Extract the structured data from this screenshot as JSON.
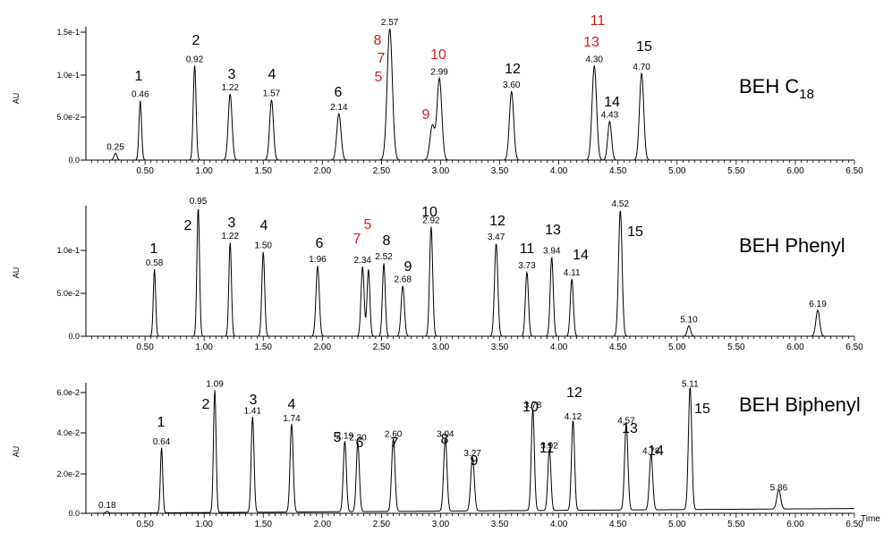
{
  "chart_data": [
    {
      "type": "line",
      "title": "BEH C18",
      "title_main": "BEH C",
      "title_sub": "18",
      "ylabel": "AU",
      "xlim": [
        0.0,
        6.5
      ],
      "ylim": [
        0.0,
        0.155
      ],
      "y_ticks": [
        {
          "value": 0.0,
          "label": "0.0"
        },
        {
          "value": 0.05,
          "label": "5.0e-2"
        },
        {
          "value": 0.1,
          "label": "1.0e-1"
        },
        {
          "value": 0.15,
          "label": "1.5e-1"
        }
      ],
      "x_ticks": [
        "0.50",
        "1.00",
        "1.50",
        "2.00",
        "2.50",
        "3.00",
        "3.50",
        "4.00",
        "4.50",
        "5.00",
        "5.50",
        "6.00",
        "6.50"
      ],
      "peaks": [
        {
          "rt": 0.25,
          "height": 0.008,
          "width": 0.012,
          "rt_label": "0.25",
          "number": ""
        },
        {
          "rt": 0.46,
          "height": 0.069,
          "width": 0.011,
          "rt_label": "0.46",
          "number": "1"
        },
        {
          "rt": 0.92,
          "height": 0.11,
          "width": 0.012,
          "rt_label": "0.92",
          "number": "2"
        },
        {
          "rt": 1.22,
          "height": 0.077,
          "width": 0.016,
          "rt_label": "1.22",
          "number": "3"
        },
        {
          "rt": 1.57,
          "height": 0.07,
          "width": 0.016,
          "rt_label": "1.57",
          "number": "4"
        },
        {
          "rt": 2.14,
          "height": 0.054,
          "width": 0.018,
          "rt_label": "2.14",
          "number": "6"
        },
        {
          "rt": 2.57,
          "height": 0.153,
          "width": 0.022,
          "rt_label": "2.57",
          "number": ""
        },
        {
          "rt": 2.93,
          "height": 0.04,
          "width": 0.02,
          "rt_label": "",
          "number": ""
        },
        {
          "rt": 2.99,
          "height": 0.095,
          "width": 0.02,
          "rt_label": "2.99",
          "number": ""
        },
        {
          "rt": 3.6,
          "height": 0.08,
          "width": 0.018,
          "rt_label": "3.60",
          "number": "12"
        },
        {
          "rt": 4.3,
          "height": 0.11,
          "width": 0.019,
          "rt_label": "4.30",
          "number": ""
        },
        {
          "rt": 4.43,
          "height": 0.045,
          "width": 0.016,
          "rt_label": "4.43",
          "number": "14"
        },
        {
          "rt": 4.7,
          "height": 0.101,
          "width": 0.018,
          "rt_label": "4.70",
          "number": "15"
        }
      ],
      "red_labels": [
        "8",
        "7",
        "5",
        "10",
        "9",
        "11",
        "13"
      ]
    },
    {
      "type": "line",
      "title": "BEH Phenyl",
      "ylabel": "AU",
      "xlim": [
        0.0,
        6.5
      ],
      "ylim": [
        0.0,
        0.15
      ],
      "y_ticks": [
        {
          "value": 0.0,
          "label": "0.0"
        },
        {
          "value": 0.05,
          "label": "5.0e-2"
        },
        {
          "value": 0.1,
          "label": "1.0e-1"
        }
      ],
      "x_ticks": [
        "0.50",
        "1.00",
        "1.50",
        "2.00",
        "2.50",
        "3.00",
        "3.50",
        "4.00",
        "4.50",
        "5.00",
        "5.50",
        "6.00",
        "6.50"
      ],
      "peaks": [
        {
          "rt": 0.58,
          "height": 0.077,
          "width": 0.01,
          "rt_label": "0.58",
          "number": "1"
        },
        {
          "rt": 0.95,
          "height": 0.148,
          "width": 0.011,
          "rt_label": "0.95",
          "number": "2"
        },
        {
          "rt": 1.22,
          "height": 0.108,
          "width": 0.011,
          "rt_label": "1.22",
          "number": "3"
        },
        {
          "rt": 1.5,
          "height": 0.097,
          "width": 0.012,
          "rt_label": "1.50",
          "number": "4"
        },
        {
          "rt": 1.96,
          "height": 0.081,
          "width": 0.014,
          "rt_label": "1.96",
          "number": "6"
        },
        {
          "rt": 2.34,
          "height": 0.08,
          "width": 0.013,
          "rt_label": "2.34",
          "number": ""
        },
        {
          "rt": 2.39,
          "height": 0.077,
          "width": 0.012,
          "rt_label": "",
          "number": ""
        },
        {
          "rt": 2.52,
          "height": 0.084,
          "width": 0.012,
          "rt_label": "2.52",
          "number": "8"
        },
        {
          "rt": 2.68,
          "height": 0.058,
          "width": 0.014,
          "rt_label": "2.68",
          "number": "9"
        },
        {
          "rt": 2.92,
          "height": 0.126,
          "width": 0.013,
          "rt_label": "2.92",
          "number": "10"
        },
        {
          "rt": 3.47,
          "height": 0.107,
          "width": 0.014,
          "rt_label": "3.47",
          "number": "12"
        },
        {
          "rt": 3.73,
          "height": 0.074,
          "width": 0.013,
          "rt_label": "3.73",
          "number": "11"
        },
        {
          "rt": 3.94,
          "height": 0.091,
          "width": 0.013,
          "rt_label": "3.94",
          "number": "13"
        },
        {
          "rt": 4.11,
          "height": 0.066,
          "width": 0.013,
          "rt_label": "4.11",
          "number": "14"
        },
        {
          "rt": 4.52,
          "height": 0.145,
          "width": 0.015,
          "rt_label": "4.52",
          "number": "15"
        },
        {
          "rt": 5.1,
          "height": 0.012,
          "width": 0.014,
          "rt_label": "5.10",
          "number": ""
        },
        {
          "rt": 6.19,
          "height": 0.03,
          "width": 0.016,
          "rt_label": "6.19",
          "number": ""
        }
      ],
      "red_labels": [
        "7",
        "5"
      ]
    },
    {
      "type": "line",
      "title": "BEH Biphenyl",
      "ylabel": "AU",
      "xaxis_label": "Time",
      "xlim": [
        0.0,
        6.5
      ],
      "ylim": [
        0.0,
        0.068
      ],
      "y_ticks": [
        {
          "value": 0.0,
          "label": "0.0"
        },
        {
          "value": 0.02,
          "label": "2.0e-2"
        },
        {
          "value": 0.04,
          "label": "4.0e-2"
        },
        {
          "value": 0.06,
          "label": "6.0e-2"
        }
      ],
      "x_ticks": [
        "0.50",
        "1.00",
        "1.50",
        "2.00",
        "2.50",
        "3.00",
        "3.50",
        "4.00",
        "4.50",
        "5.00",
        "5.50",
        "6.00",
        "6.50"
      ],
      "peaks": [
        {
          "rt": 0.18,
          "height": 0.001,
          "width": 0.012,
          "rt_label": "0.18",
          "number": ""
        },
        {
          "rt": 0.64,
          "height": 0.034,
          "width": 0.01,
          "rt_label": "0.64",
          "number": "1"
        },
        {
          "rt": 1.09,
          "height": 0.064,
          "width": 0.011,
          "rt_label": "1.09",
          "number": "2"
        },
        {
          "rt": 1.41,
          "height": 0.05,
          "width": 0.012,
          "rt_label": "1.41",
          "number": "3"
        },
        {
          "rt": 1.74,
          "height": 0.046,
          "width": 0.013,
          "rt_label": "1.74",
          "number": "4"
        },
        {
          "rt": 2.19,
          "height": 0.037,
          "width": 0.013,
          "rt_label": "2.19",
          "number": "5"
        },
        {
          "rt": 2.3,
          "height": 0.036,
          "width": 0.013,
          "rt_label": "2.30",
          "number": "6"
        },
        {
          "rt": 2.6,
          "height": 0.038,
          "width": 0.014,
          "rt_label": "2.60",
          "number": "7"
        },
        {
          "rt": 3.04,
          "height": 0.038,
          "width": 0.014,
          "rt_label": "3.04",
          "number": "8"
        },
        {
          "rt": 3.27,
          "height": 0.028,
          "width": 0.015,
          "rt_label": "3.27",
          "number": "9"
        },
        {
          "rt": 3.78,
          "height": 0.053,
          "width": 0.013,
          "rt_label": "3.78",
          "number": "10"
        },
        {
          "rt": 3.92,
          "height": 0.032,
          "width": 0.013,
          "rt_label": "3.92",
          "number": "11"
        },
        {
          "rt": 4.12,
          "height": 0.047,
          "width": 0.013,
          "rt_label": "4.12",
          "number": "12"
        },
        {
          "rt": 4.57,
          "height": 0.045,
          "width": 0.014,
          "rt_label": "4.57",
          "number": "13"
        },
        {
          "rt": 4.78,
          "height": 0.029,
          "width": 0.014,
          "rt_label": "4.78",
          "number": "14"
        },
        {
          "rt": 5.11,
          "height": 0.064,
          "width": 0.014,
          "rt_label": "5.11",
          "number": "15"
        },
        {
          "rt": 5.86,
          "height": 0.01,
          "width": 0.016,
          "rt_label": "5.86",
          "number": ""
        }
      ],
      "red_labels": []
    }
  ],
  "colors": {
    "trace": "#000000",
    "axis": "#000000",
    "text": "#000000",
    "highlight_red": "#d02020"
  }
}
